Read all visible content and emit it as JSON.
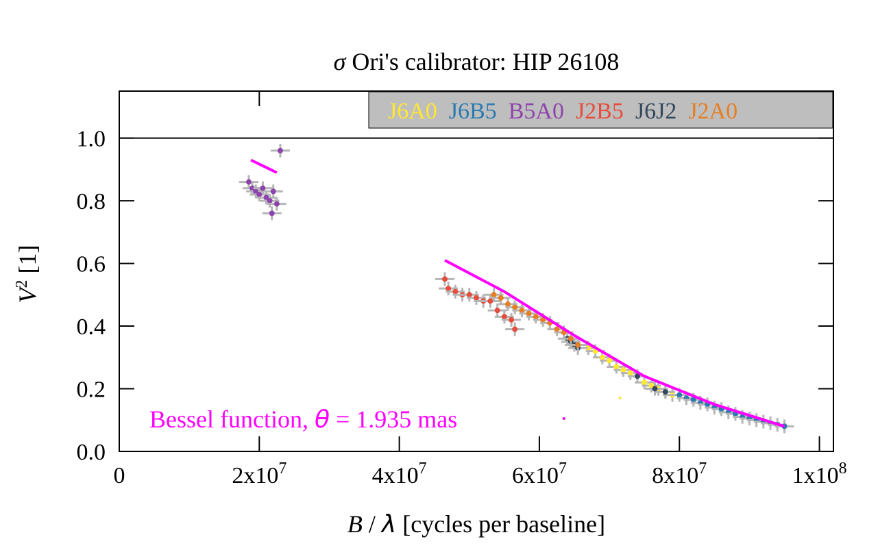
{
  "chart_data": {
    "type": "scatter",
    "title": {
      "symbol": "σ",
      "text": " Ori's calibrator: HIP 26108"
    },
    "xlabel": {
      "symbol_b": "B",
      "sep": " / ",
      "symbol_l": "λ",
      "text": " [cycles per baseline]"
    },
    "ylabel": {
      "base": "V",
      "sup": "2",
      "text": " [1]"
    },
    "xlim": [
      0,
      102000000
    ],
    "ylim": [
      0,
      1.15
    ],
    "x_ticks": [
      {
        "value": 0,
        "mant": "0",
        "exp": ""
      },
      {
        "value": 20000000,
        "mant": "2x10",
        "exp": "7"
      },
      {
        "value": 40000000,
        "mant": "4x10",
        "exp": "7"
      },
      {
        "value": 60000000,
        "mant": "6x10",
        "exp": "7"
      },
      {
        "value": 80000000,
        "mant": "8x10",
        "exp": "7"
      },
      {
        "value": 100000000,
        "mant": "1x10",
        "exp": "8"
      }
    ],
    "y_ticks": [
      {
        "value": 0.0,
        "label": "0.0"
      },
      {
        "value": 0.2,
        "label": "0.2"
      },
      {
        "value": 0.4,
        "label": "0.4"
      },
      {
        "value": 0.6,
        "label": "0.6"
      },
      {
        "value": 0.8,
        "label": "0.8"
      },
      {
        "value": 1.0,
        "label": "1.0"
      }
    ],
    "reference_line": 1.0,
    "grid": false,
    "legend_position": "top-right",
    "legend_background": "#bebebe",
    "series": [
      {
        "name": "J6A0",
        "color": "#ffe830",
        "points": [
          [
            67000000,
            0.33
          ],
          [
            68000000,
            0.32
          ],
          [
            69000000,
            0.3
          ],
          [
            70000000,
            0.29
          ],
          [
            71000000,
            0.27
          ],
          [
            72000000,
            0.26
          ],
          [
            73000000,
            0.25
          ],
          [
            74000000,
            0.24
          ],
          [
            75000000,
            0.22
          ],
          [
            76000000,
            0.21
          ],
          [
            77000000,
            0.2
          ],
          [
            78000000,
            0.19
          ],
          [
            79000000,
            0.18
          ]
        ]
      },
      {
        "name": "J6B5",
        "color": "#2a7ab0",
        "points": [
          [
            80000000,
            0.18
          ],
          [
            81000000,
            0.17
          ],
          [
            82000000,
            0.165
          ],
          [
            83000000,
            0.155
          ],
          [
            84000000,
            0.15
          ],
          [
            85000000,
            0.14
          ],
          [
            86000000,
            0.135
          ],
          [
            87000000,
            0.125
          ],
          [
            88000000,
            0.12
          ],
          [
            89000000,
            0.11
          ],
          [
            90000000,
            0.105
          ],
          [
            91000000,
            0.1
          ],
          [
            92000000,
            0.095
          ],
          [
            93000000,
            0.09
          ],
          [
            94000000,
            0.085
          ],
          [
            95000000,
            0.08
          ]
        ]
      },
      {
        "name": "B5A0",
        "color": "#8e44ad",
        "points": [
          [
            18500000,
            0.86
          ],
          [
            19000000,
            0.84
          ],
          [
            19500000,
            0.83
          ],
          [
            20000000,
            0.82
          ],
          [
            20500000,
            0.84
          ],
          [
            21000000,
            0.81
          ],
          [
            21500000,
            0.8
          ],
          [
            22000000,
            0.83
          ],
          [
            22500000,
            0.79
          ],
          [
            23000000,
            0.96
          ],
          [
            21800000,
            0.76
          ]
        ]
      },
      {
        "name": "J2B5",
        "color": "#e74c3c",
        "points": [
          [
            46500000,
            0.55
          ],
          [
            47000000,
            0.52
          ],
          [
            48000000,
            0.51
          ],
          [
            49000000,
            0.5
          ],
          [
            50000000,
            0.5
          ],
          [
            51000000,
            0.49
          ],
          [
            52000000,
            0.48
          ],
          [
            53000000,
            0.48
          ],
          [
            54000000,
            0.45
          ],
          [
            55000000,
            0.43
          ],
          [
            56000000,
            0.42
          ],
          [
            56500000,
            0.39
          ]
        ]
      },
      {
        "name": "J6J2",
        "color": "#34495e",
        "points": [
          [
            64000000,
            0.36
          ],
          [
            64500000,
            0.35
          ],
          [
            65000000,
            0.34
          ],
          [
            65500000,
            0.33
          ],
          [
            74000000,
            0.24
          ],
          [
            76500000,
            0.2
          ],
          [
            78000000,
            0.19
          ]
        ]
      },
      {
        "name": "J2A0",
        "color": "#e67e22",
        "points": [
          [
            53500000,
            0.5
          ],
          [
            54500000,
            0.49
          ],
          [
            55500000,
            0.47
          ],
          [
            56500000,
            0.46
          ],
          [
            57500000,
            0.45
          ],
          [
            58500000,
            0.44
          ],
          [
            59500000,
            0.43
          ],
          [
            60500000,
            0.42
          ],
          [
            61500000,
            0.41
          ],
          [
            62500000,
            0.39
          ],
          [
            63500000,
            0.38
          ],
          [
            64500000,
            0.36
          ],
          [
            65500000,
            0.34
          ]
        ]
      }
    ],
    "fit_lines": [
      {
        "name": "fit-b5a0",
        "color": "#ff00ff",
        "points": [
          [
            18800000,
            0.93
          ],
          [
            22500000,
            0.89
          ]
        ]
      },
      {
        "name": "fit-main",
        "color": "#ff00ff",
        "points": [
          [
            46500000,
            0.61
          ],
          [
            55000000,
            0.51
          ],
          [
            65000000,
            0.37
          ],
          [
            75000000,
            0.24
          ],
          [
            85000000,
            0.15
          ],
          [
            95000000,
            0.08
          ]
        ]
      }
    ],
    "outliers": [
      {
        "color": "#ff00ff",
        "point": [
          63500000,
          0.105
        ]
      },
      {
        "color": "#ffe830",
        "point": [
          71500000,
          0.17
        ]
      }
    ],
    "annotation": {
      "prefix": "Bessel function, ",
      "symbol": "θ",
      "suffix": " = 1.935 mas",
      "color": "#ff00ff"
    }
  }
}
